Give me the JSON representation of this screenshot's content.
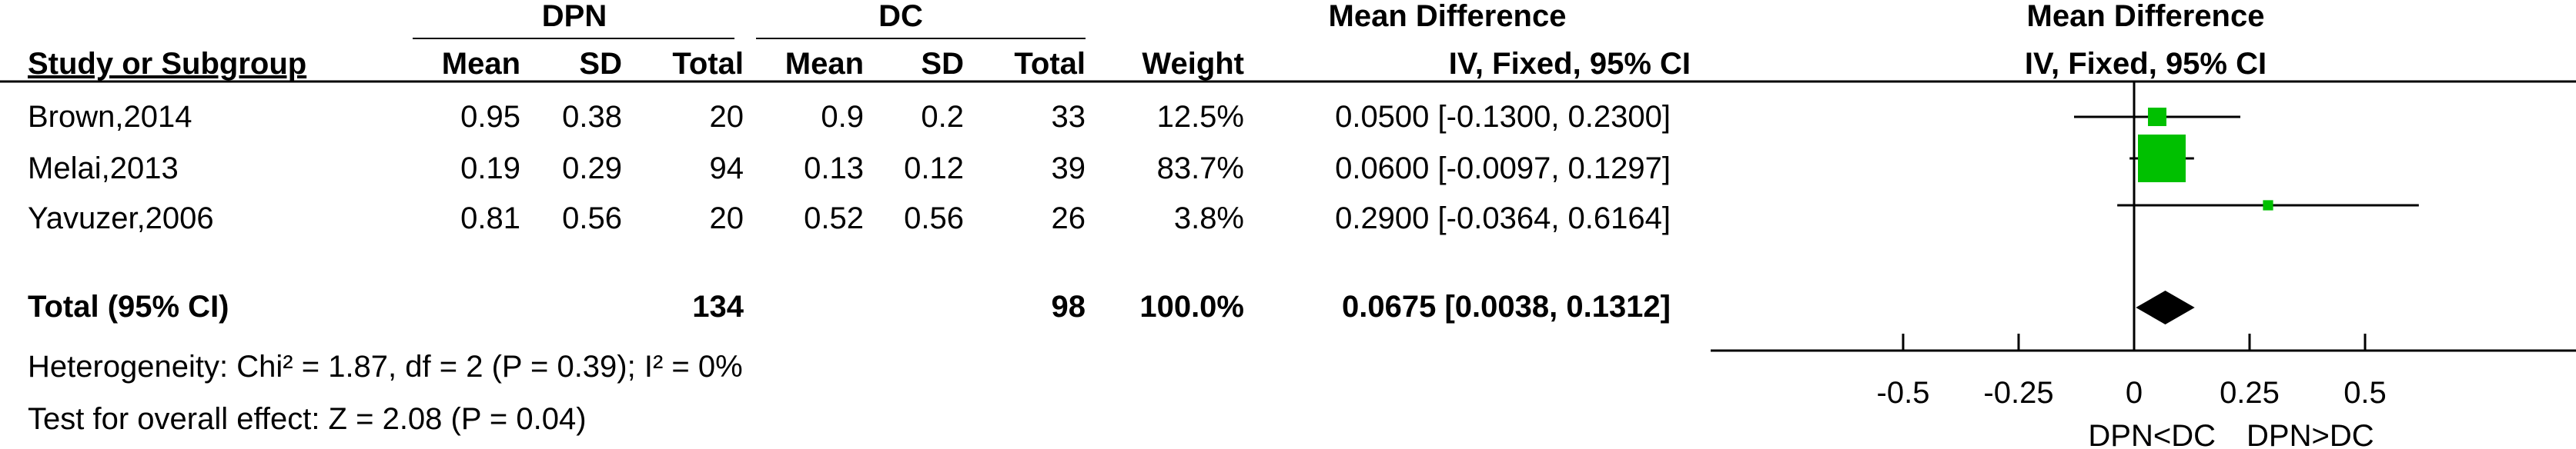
{
  "header": {
    "group1": "DPN",
    "group2": "DC",
    "md_title": "Mean Difference",
    "plot_title": "Mean Difference",
    "cols": {
      "study": "Study or Subgroup",
      "mean1": "Mean",
      "sd1": "SD",
      "total1": "Total",
      "mean2": "Mean",
      "sd2": "SD",
      "total2": "Total",
      "weight": "Weight",
      "md_ci": "IV, Fixed, 95% CI"
    },
    "plot_subtitle": "IV, Fixed, 95% CI"
  },
  "studies": [
    {
      "name": "Brown,2014",
      "mean1": "0.95",
      "sd1": "0.38",
      "total1": "20",
      "mean2": "0.9",
      "sd2": "0.2",
      "total2": "33",
      "weight_label": "12.5%",
      "ci_label": "0.0500 [-0.1300, 0.2300]"
    },
    {
      "name": "Melai,2013",
      "mean1": "0.19",
      "sd1": "0.29",
      "total1": "94",
      "mean2": "0.13",
      "sd2": "0.12",
      "total2": "39",
      "weight_label": "83.7%",
      "ci_label": "0.0600 [-0.0097, 0.1297]"
    },
    {
      "name": "Yavuzer,2006",
      "mean1": "0.81",
      "sd1": "0.56",
      "total1": "20",
      "mean2": "0.52",
      "sd2": "0.56",
      "total2": "26",
      "weight_label": "3.8%",
      "ci_label": "0.2900 [-0.0364, 0.6164]"
    }
  ],
  "total": {
    "label": "Total (95% CI)",
    "total1": "134",
    "total2": "98",
    "weight_label": "100.0%",
    "ci_label": "0.0675 [0.0038, 0.1312]"
  },
  "footer": {
    "heterogeneity": "Heterogeneity: Chi² = 1.87, df = 2 (P = 0.39); I² = 0%",
    "overall": "Test for overall effect: Z = 2.08 (P = 0.04)"
  },
  "axis_labels": {
    "left": "DPN<DC",
    "right": "DPN>DC"
  },
  "colors": {
    "study_marker": "#00c000",
    "summary": "#000000"
  },
  "chart_data": {
    "type": "forest",
    "x_ticks": [
      -0.5,
      -0.25,
      0,
      0.25,
      0.5
    ],
    "x_tick_labels": [
      "-0.5",
      "-0.25",
      "0",
      "0.25",
      "0.5"
    ],
    "xlim": [
      -0.9,
      0.9
    ],
    "studies": [
      {
        "name": "Brown,2014",
        "md": 0.05,
        "lower": -0.13,
        "upper": 0.23,
        "weight": 12.5
      },
      {
        "name": "Melai,2013",
        "md": 0.06,
        "lower": -0.0097,
        "upper": 0.1297,
        "weight": 83.7
      },
      {
        "name": "Yavuzer,2006",
        "md": 0.29,
        "lower": -0.0364,
        "upper": 0.6164,
        "weight": 3.8
      }
    ],
    "pooled": {
      "md": 0.0675,
      "lower": 0.0038,
      "upper": 0.1312
    }
  }
}
